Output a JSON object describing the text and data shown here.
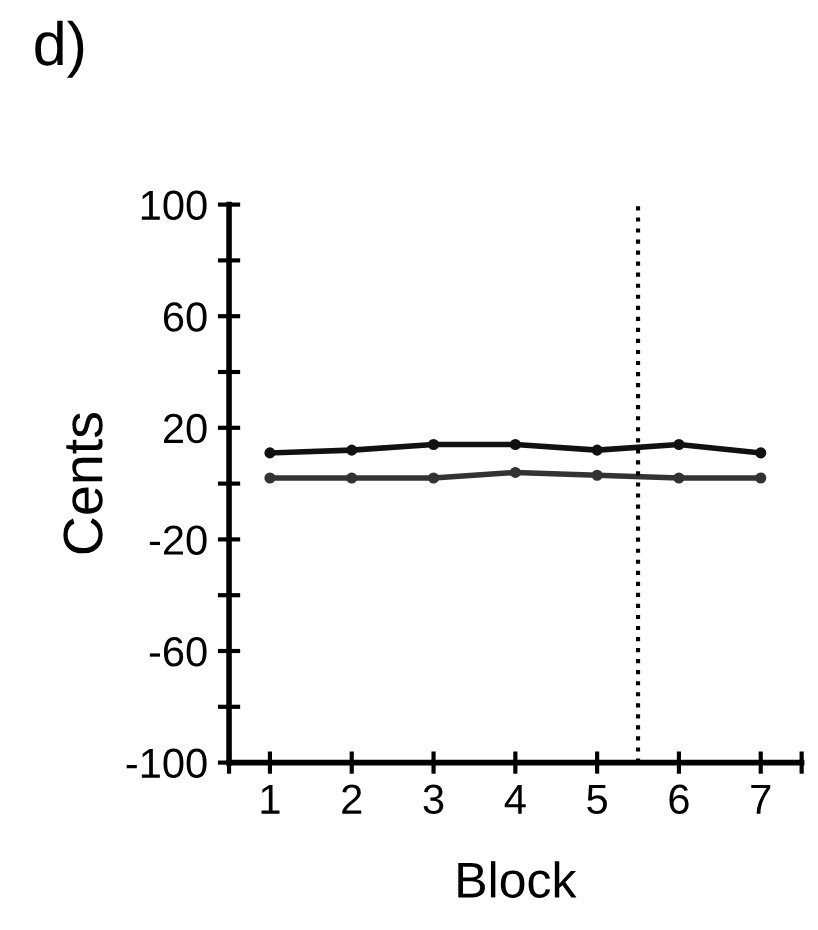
{
  "chart_data": {
    "type": "line",
    "title": "d)",
    "xlabel": "Block",
    "ylabel": "Cents",
    "x": [
      1,
      2,
      3,
      4,
      5,
      6,
      7
    ],
    "series": [
      {
        "color": "#111111",
        "values": [
          11,
          12,
          14,
          14,
          12,
          14,
          11
        ]
      },
      {
        "color": "#333333",
        "values": [
          2,
          2,
          2,
          4,
          3,
          2,
          2
        ]
      }
    ],
    "xlim": [
      0.5,
      7.5
    ],
    "xticks": [
      {
        "value": 0.5,
        "label": null
      },
      1,
      2,
      3,
      4,
      5,
      6,
      7,
      {
        "value": 7.5,
        "label": null
      }
    ],
    "ylim": [
      -100,
      100
    ],
    "yticks": [
      -100,
      {
        "value": -80,
        "label": null
      },
      -60,
      {
        "value": -40,
        "label": null
      },
      -20,
      {
        "value": 0,
        "label": null
      },
      20,
      {
        "value": 40,
        "label": null
      },
      60,
      {
        "value": 80,
        "label": null
      },
      100
    ],
    "ref_lines": [
      {
        "axis": "x",
        "value": 5.5,
        "line_style": "dotted",
        "color": "#000000"
      }
    ],
    "marker": "circle",
    "line_style": "solid",
    "grid": false,
    "legend": false
  }
}
